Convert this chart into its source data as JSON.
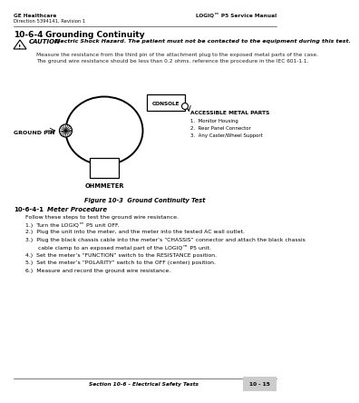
{
  "header_left_line1": "GE Healthcare",
  "header_left_line2": "Direction 5394141, Revision 1",
  "header_right": "LOGIQ™ P5 Service Manual",
  "section_title_num": "10-6-4",
  "section_title": "Grounding Continuity",
  "caution_label": "CAUTION",
  "caution_text": "Electric Shock Hazard. The patient must not be contacted to the equipment during this test.",
  "body_line1": "Measure the resistance from the third pin of the attachment plug to the exposed metal parts of the case.",
  "body_line2": "The ground wire resistance should be less than 0.2 ohms. reference the procedure in the IEC 601-1.1.",
  "console_label": "CONSOLE",
  "ground_pin_label": "GROUND PIN",
  "ohmmeter_label": "OHMMETER",
  "accessible_label": "ACCESSIBLE METAL PARTS",
  "accessible_items": [
    "1.  Monitor Housing",
    "2.  Rear Panel Connector",
    "3.  Any Caster/Wheel Support"
  ],
  "figure_caption": "Figure 10-3  Ground Continuity Test",
  "subsection_num": "10-6-4-1",
  "subsection_title": "Meter Procedure",
  "subsection_body": "Follow these steps to test the ground wire resistance.",
  "steps": [
    "1.)  Turn the LOGIQ™ P5 unit OFF.",
    "2.)  Plug the unit into the meter, and the meter into the tested AC wall outlet.",
    "3.)  Plug the black chassis cable into the meter’s “CHASSIS” connector and attach the black chassis",
    "       cable clamp to an exposed metal part of the LOGIQ™ P5 unit.",
    "4.)  Set the meter’s “FUNCTION” switch to the RESISTANCE position.",
    "5.)  Set the meter’s “POLARITY” switch to the OFF (center) position.",
    "6.)  Measure and record the ground wire resistance."
  ],
  "footer_center": "Section 10-6 - Electrical Safety Tests",
  "footer_right": "10 - 15",
  "bg_color": "#ffffff",
  "footer_box_color": "#cccccc"
}
